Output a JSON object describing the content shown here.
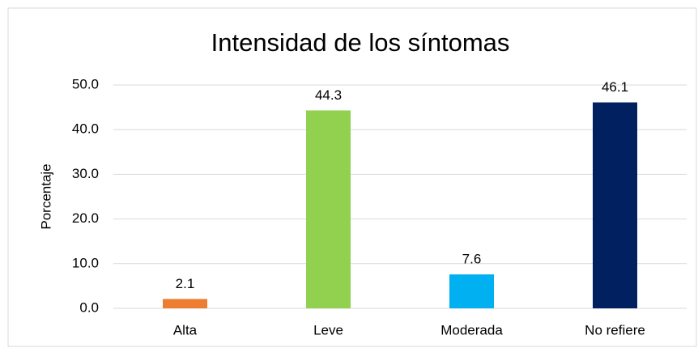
{
  "chart_data": {
    "type": "bar",
    "title": "Intensidad de los síntomas",
    "y_label": "Porcentaje",
    "categories": [
      "Alta",
      "Leve",
      "Moderada",
      "No refiere"
    ],
    "values": [
      2.1,
      44.3,
      7.6,
      46.1
    ],
    "colors": [
      "#ed7d31",
      "#92d050",
      "#00b0f0",
      "#002060"
    ],
    "ylim": [
      0,
      50
    ],
    "yticks": [
      {
        "value": 0,
        "label": "0.0"
      },
      {
        "value": 10,
        "label": "10.0"
      },
      {
        "value": 20,
        "label": "20.0"
      },
      {
        "value": 30,
        "label": "30.0"
      },
      {
        "value": 40,
        "label": "40.0"
      },
      {
        "value": 50,
        "label": "50.0"
      }
    ],
    "grid": true
  }
}
